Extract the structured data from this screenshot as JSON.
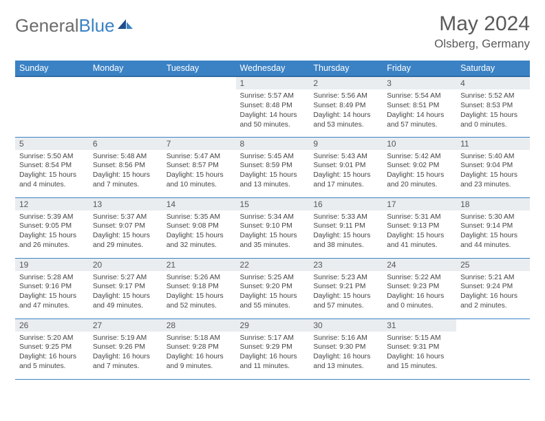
{
  "logo": {
    "text1": "General",
    "text2": "Blue"
  },
  "title": "May 2024",
  "location": "Olsberg, Germany",
  "colors": {
    "header_bg": "#3b82c4",
    "header_border": "#2f6aa3",
    "cell_border": "#3b82c4",
    "daynum_bg": "#e9edf0",
    "logo_gray": "#6b6b6b",
    "logo_blue": "#3b82c4",
    "text_gray": "#5a5a5a"
  },
  "weekdays": [
    "Sunday",
    "Monday",
    "Tuesday",
    "Wednesday",
    "Thursday",
    "Friday",
    "Saturday"
  ],
  "weeks": [
    [
      null,
      null,
      null,
      {
        "n": "1",
        "sr": "5:57 AM",
        "ss": "8:48 PM",
        "dl": "14 hours and 50 minutes."
      },
      {
        "n": "2",
        "sr": "5:56 AM",
        "ss": "8:49 PM",
        "dl": "14 hours and 53 minutes."
      },
      {
        "n": "3",
        "sr": "5:54 AM",
        "ss": "8:51 PM",
        "dl": "14 hours and 57 minutes."
      },
      {
        "n": "4",
        "sr": "5:52 AM",
        "ss": "8:53 PM",
        "dl": "15 hours and 0 minutes."
      }
    ],
    [
      {
        "n": "5",
        "sr": "5:50 AM",
        "ss": "8:54 PM",
        "dl": "15 hours and 4 minutes."
      },
      {
        "n": "6",
        "sr": "5:48 AM",
        "ss": "8:56 PM",
        "dl": "15 hours and 7 minutes."
      },
      {
        "n": "7",
        "sr": "5:47 AM",
        "ss": "8:57 PM",
        "dl": "15 hours and 10 minutes."
      },
      {
        "n": "8",
        "sr": "5:45 AM",
        "ss": "8:59 PM",
        "dl": "15 hours and 13 minutes."
      },
      {
        "n": "9",
        "sr": "5:43 AM",
        "ss": "9:01 PM",
        "dl": "15 hours and 17 minutes."
      },
      {
        "n": "10",
        "sr": "5:42 AM",
        "ss": "9:02 PM",
        "dl": "15 hours and 20 minutes."
      },
      {
        "n": "11",
        "sr": "5:40 AM",
        "ss": "9:04 PM",
        "dl": "15 hours and 23 minutes."
      }
    ],
    [
      {
        "n": "12",
        "sr": "5:39 AM",
        "ss": "9:05 PM",
        "dl": "15 hours and 26 minutes."
      },
      {
        "n": "13",
        "sr": "5:37 AM",
        "ss": "9:07 PM",
        "dl": "15 hours and 29 minutes."
      },
      {
        "n": "14",
        "sr": "5:35 AM",
        "ss": "9:08 PM",
        "dl": "15 hours and 32 minutes."
      },
      {
        "n": "15",
        "sr": "5:34 AM",
        "ss": "9:10 PM",
        "dl": "15 hours and 35 minutes."
      },
      {
        "n": "16",
        "sr": "5:33 AM",
        "ss": "9:11 PM",
        "dl": "15 hours and 38 minutes."
      },
      {
        "n": "17",
        "sr": "5:31 AM",
        "ss": "9:13 PM",
        "dl": "15 hours and 41 minutes."
      },
      {
        "n": "18",
        "sr": "5:30 AM",
        "ss": "9:14 PM",
        "dl": "15 hours and 44 minutes."
      }
    ],
    [
      {
        "n": "19",
        "sr": "5:28 AM",
        "ss": "9:16 PM",
        "dl": "15 hours and 47 minutes."
      },
      {
        "n": "20",
        "sr": "5:27 AM",
        "ss": "9:17 PM",
        "dl": "15 hours and 49 minutes."
      },
      {
        "n": "21",
        "sr": "5:26 AM",
        "ss": "9:18 PM",
        "dl": "15 hours and 52 minutes."
      },
      {
        "n": "22",
        "sr": "5:25 AM",
        "ss": "9:20 PM",
        "dl": "15 hours and 55 minutes."
      },
      {
        "n": "23",
        "sr": "5:23 AM",
        "ss": "9:21 PM",
        "dl": "15 hours and 57 minutes."
      },
      {
        "n": "24",
        "sr": "5:22 AM",
        "ss": "9:23 PM",
        "dl": "16 hours and 0 minutes."
      },
      {
        "n": "25",
        "sr": "5:21 AM",
        "ss": "9:24 PM",
        "dl": "16 hours and 2 minutes."
      }
    ],
    [
      {
        "n": "26",
        "sr": "5:20 AM",
        "ss": "9:25 PM",
        "dl": "16 hours and 5 minutes."
      },
      {
        "n": "27",
        "sr": "5:19 AM",
        "ss": "9:26 PM",
        "dl": "16 hours and 7 minutes."
      },
      {
        "n": "28",
        "sr": "5:18 AM",
        "ss": "9:28 PM",
        "dl": "16 hours and 9 minutes."
      },
      {
        "n": "29",
        "sr": "5:17 AM",
        "ss": "9:29 PM",
        "dl": "16 hours and 11 minutes."
      },
      {
        "n": "30",
        "sr": "5:16 AM",
        "ss": "9:30 PM",
        "dl": "16 hours and 13 minutes."
      },
      {
        "n": "31",
        "sr": "5:15 AM",
        "ss": "9:31 PM",
        "dl": "16 hours and 15 minutes."
      },
      null
    ]
  ],
  "labels": {
    "sunrise": "Sunrise:",
    "sunset": "Sunset:",
    "daylight": "Daylight:"
  }
}
